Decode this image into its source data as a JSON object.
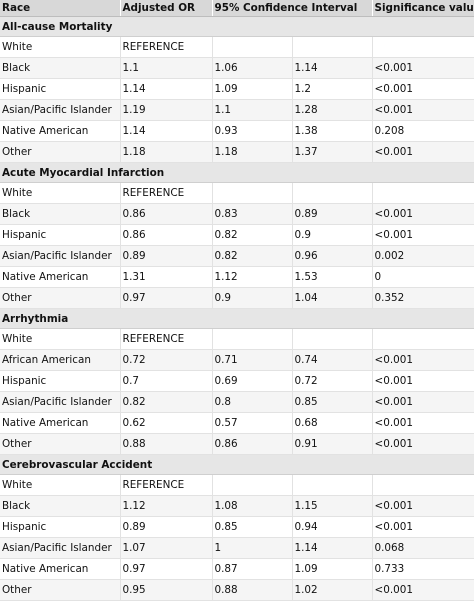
{
  "header": [
    "Race",
    "Adjusted OR",
    "95% Confidence Interval",
    "",
    "Significance value (p)"
  ],
  "sections": [
    {
      "title": "All-cause Mortality",
      "rows": [
        [
          "White",
          "REFERENCE",
          "",
          "",
          ""
        ],
        [
          "Black",
          "1.1",
          "1.06",
          "1.14",
          "<0.001"
        ],
        [
          "Hispanic",
          "1.14",
          "1.09",
          "1.2",
          "<0.001"
        ],
        [
          "Asian/Pacific Islander",
          "1.19",
          "1.1",
          "1.28",
          "<0.001"
        ],
        [
          "Native American",
          "1.14",
          "0.93",
          "1.38",
          "0.208"
        ],
        [
          "Other",
          "1.18",
          "1.18",
          "1.37",
          "<0.001"
        ]
      ]
    },
    {
      "title": "Acute Myocardial Infarction",
      "rows": [
        [
          "White",
          "REFERENCE",
          "",
          "",
          ""
        ],
        [
          "Black",
          "0.86",
          "0.83",
          "0.89",
          "<0.001"
        ],
        [
          "Hispanic",
          "0.86",
          "0.82",
          "0.9",
          "<0.001"
        ],
        [
          "Asian/Pacific Islander",
          "0.89",
          "0.82",
          "0.96",
          "0.002"
        ],
        [
          "Native American",
          "1.31",
          "1.12",
          "1.53",
          "0"
        ],
        [
          "Other",
          "0.97",
          "0.9",
          "1.04",
          "0.352"
        ]
      ]
    },
    {
      "title": "Arrhythmia",
      "rows": [
        [
          "White",
          "REFERENCE",
          "",
          "",
          ""
        ],
        [
          "African American",
          "0.72",
          "0.71",
          "0.74",
          "<0.001"
        ],
        [
          "Hispanic",
          "0.7",
          "0.69",
          "0.72",
          "<0.001"
        ],
        [
          "Asian/Pacific Islander",
          "0.82",
          "0.8",
          "0.85",
          "<0.001"
        ],
        [
          "Native American",
          "0.62",
          "0.57",
          "0.68",
          "<0.001"
        ],
        [
          "Other",
          "0.88",
          "0.86",
          "0.91",
          "<0.001"
        ]
      ]
    },
    {
      "title": "Cerebrovascular Accident",
      "rows": [
        [
          "White",
          "REFERENCE",
          "",
          "",
          ""
        ],
        [
          "Black",
          "1.12",
          "1.08",
          "1.15",
          "<0.001"
        ],
        [
          "Hispanic",
          "0.89",
          "0.85",
          "0.94",
          "<0.001"
        ],
        [
          "Asian/Pacific Islander",
          "1.07",
          "1",
          "1.14",
          "0.068"
        ],
        [
          "Native American",
          "0.97",
          "0.87",
          "1.09",
          "0.733"
        ],
        [
          "Other",
          "0.95",
          "0.88",
          "1.02",
          "<0.001"
        ]
      ]
    }
  ]
}
